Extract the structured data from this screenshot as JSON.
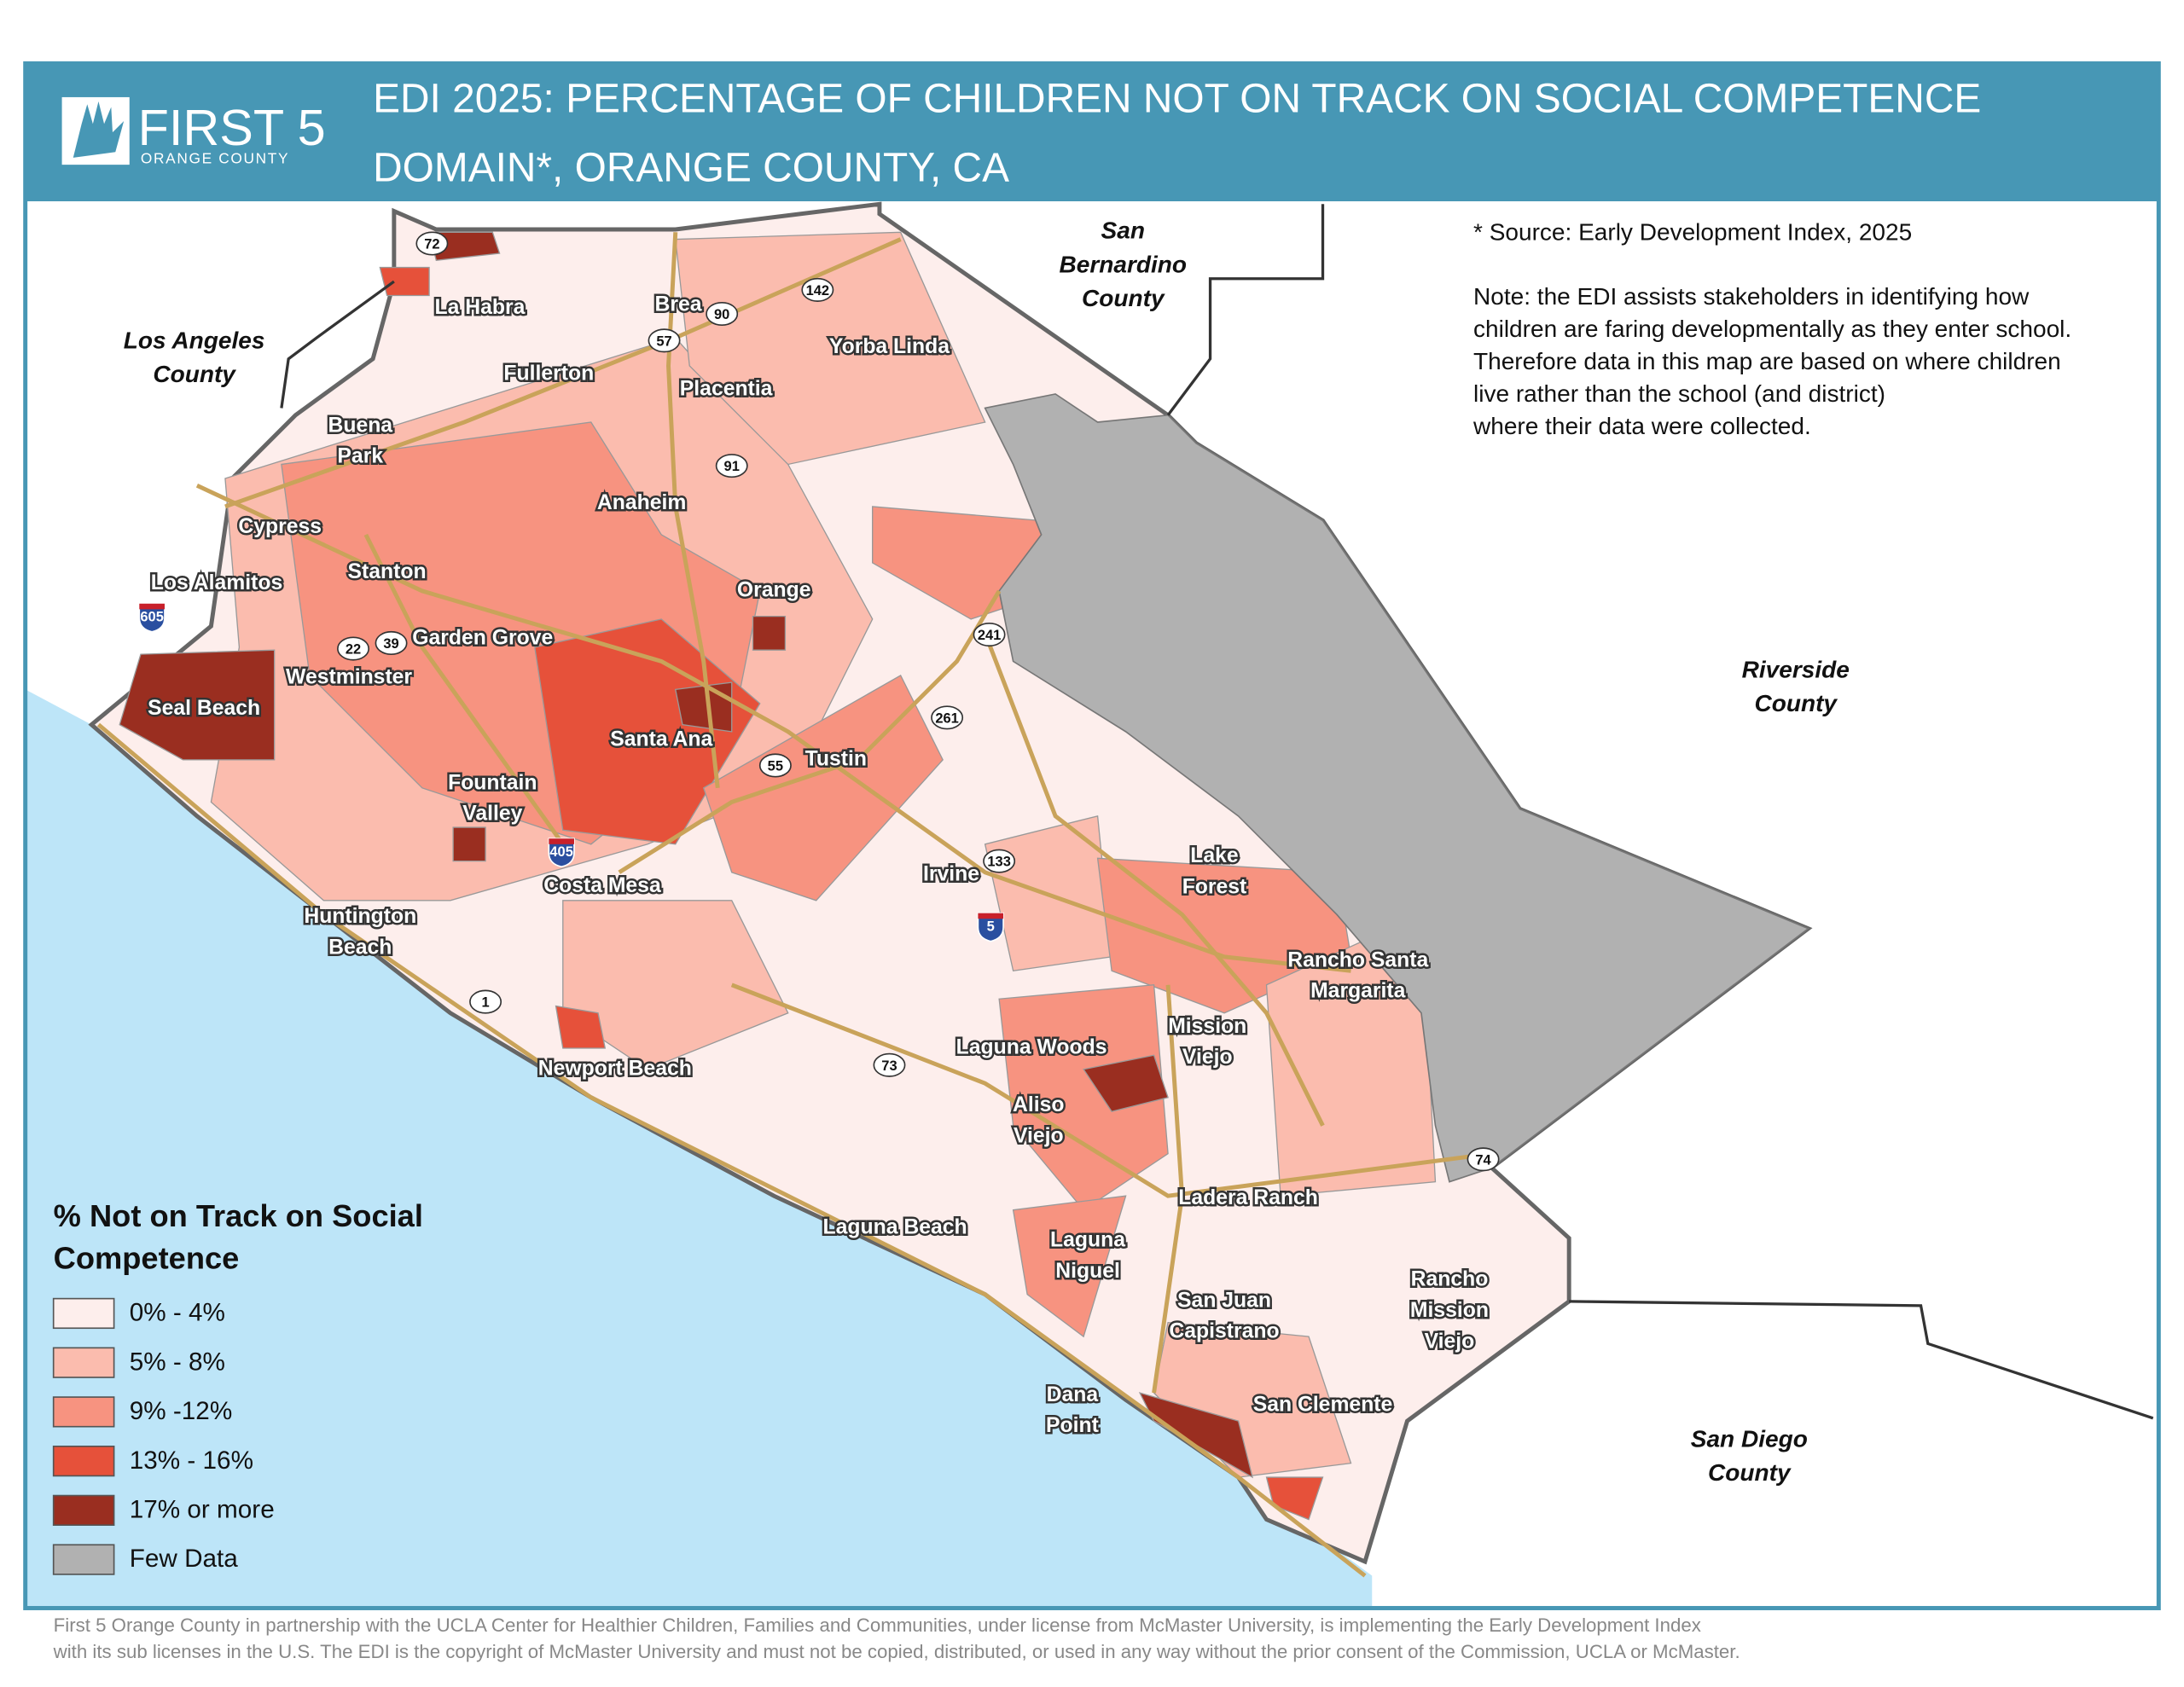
{
  "header": {
    "logo": {
      "title": "FIRST 5",
      "subtitle": "ORANGE COUNTY"
    },
    "title_lines": [
      "EDI 2025: PERCENTAGE OF CHILDREN NOT ON TRACK ON SOCIAL COMPETENCE",
      "DOMAIN*, ORANGE COUNTY, CA"
    ]
  },
  "source": "* Source: Early Development Index, 2025",
  "note_lines": [
    "Note: the EDI assists stakeholders in identifying how",
    "children are faring developmentally as they enter school.",
    "Therefore data in this map are based on where children",
    "live rather than the school (and district)",
    "where their data were collected."
  ],
  "legend": {
    "title_lines": [
      "% Not on Track on Social",
      "Competence"
    ],
    "items": [
      {
        "label": "0% - 4%",
        "color": "#fdeeec"
      },
      {
        "label": "5% - 8%",
        "color": "#fbbcae"
      },
      {
        "label": "9% -12%",
        "color": "#f79380"
      },
      {
        "label": "13% - 16%",
        "color": "#e6513a"
      },
      {
        "label": "17% or more",
        "color": "#9a2e20"
      },
      {
        "label": "Few Data",
        "color": "#b1b1b1"
      }
    ]
  },
  "counties": [
    {
      "lines": [
        "Los Angeles",
        "County"
      ]
    },
    {
      "lines": [
        "San",
        "Bernardino",
        "County"
      ]
    },
    {
      "lines": [
        "Riverside",
        "County"
      ]
    },
    {
      "lines": [
        "San Diego",
        "County"
      ]
    }
  ],
  "places": [
    {
      "lines": [
        "La Habra"
      ]
    },
    {
      "lines": [
        "Brea"
      ]
    },
    {
      "lines": [
        "Fullerton"
      ]
    },
    {
      "lines": [
        "Placentia"
      ]
    },
    {
      "lines": [
        "Yorba Linda"
      ]
    },
    {
      "lines": [
        "Buena",
        "Park"
      ]
    },
    {
      "lines": [
        "Anaheim"
      ]
    },
    {
      "lines": [
        "Cypress"
      ]
    },
    {
      "lines": [
        "Stanton"
      ]
    },
    {
      "lines": [
        "Los Alamitos"
      ]
    },
    {
      "lines": [
        "Orange"
      ]
    },
    {
      "lines": [
        "Garden Grove"
      ]
    },
    {
      "lines": [
        "Westminster"
      ]
    },
    {
      "lines": [
        "Seal Beach"
      ]
    },
    {
      "lines": [
        "Santa Ana"
      ]
    },
    {
      "lines": [
        "Tustin"
      ]
    },
    {
      "lines": [
        "Fountain",
        "Valley"
      ]
    },
    {
      "lines": [
        "Irvine"
      ]
    },
    {
      "lines": [
        "Costa Mesa"
      ]
    },
    {
      "lines": [
        "Lake",
        "Forest"
      ]
    },
    {
      "lines": [
        "Huntington",
        "Beach"
      ]
    },
    {
      "lines": [
        "Rancho Santa",
        "Margarita"
      ]
    },
    {
      "lines": [
        "Mission",
        "Viejo"
      ]
    },
    {
      "lines": [
        "Laguna Woods"
      ]
    },
    {
      "lines": [
        "Newport Beach"
      ]
    },
    {
      "lines": [
        "Aliso",
        "Viejo"
      ]
    },
    {
      "lines": [
        "Ladera Ranch"
      ]
    },
    {
      "lines": [
        "Laguna Beach"
      ]
    },
    {
      "lines": [
        "Laguna",
        "Niguel"
      ]
    },
    {
      "lines": [
        "San Juan",
        "Capistrano"
      ]
    },
    {
      "lines": [
        "Rancho",
        "Mission",
        "Viejo"
      ]
    },
    {
      "lines": [
        "San Clemente"
      ]
    },
    {
      "lines": [
        "Dana",
        "Point"
      ]
    }
  ],
  "highways": [
    "72",
    "90",
    "57",
    "142",
    "91",
    "22",
    "39",
    "241",
    "261",
    "55",
    "133",
    "1",
    "73",
    "74"
  ],
  "interstates": [
    "605",
    "405",
    "5"
  ],
  "footer_lines": [
    "First 5 Orange County in partnership with the UCLA Center for Healthier Children, Families and Communities, under license from McMaster University, is implementing the Early Development Index",
    " with its sub licenses in the U.S. The EDI is the copyright of McMaster University and must not be copied, distributed, or used in any way without the prior consent of the Commission, UCLA or McMaster."
  ]
}
